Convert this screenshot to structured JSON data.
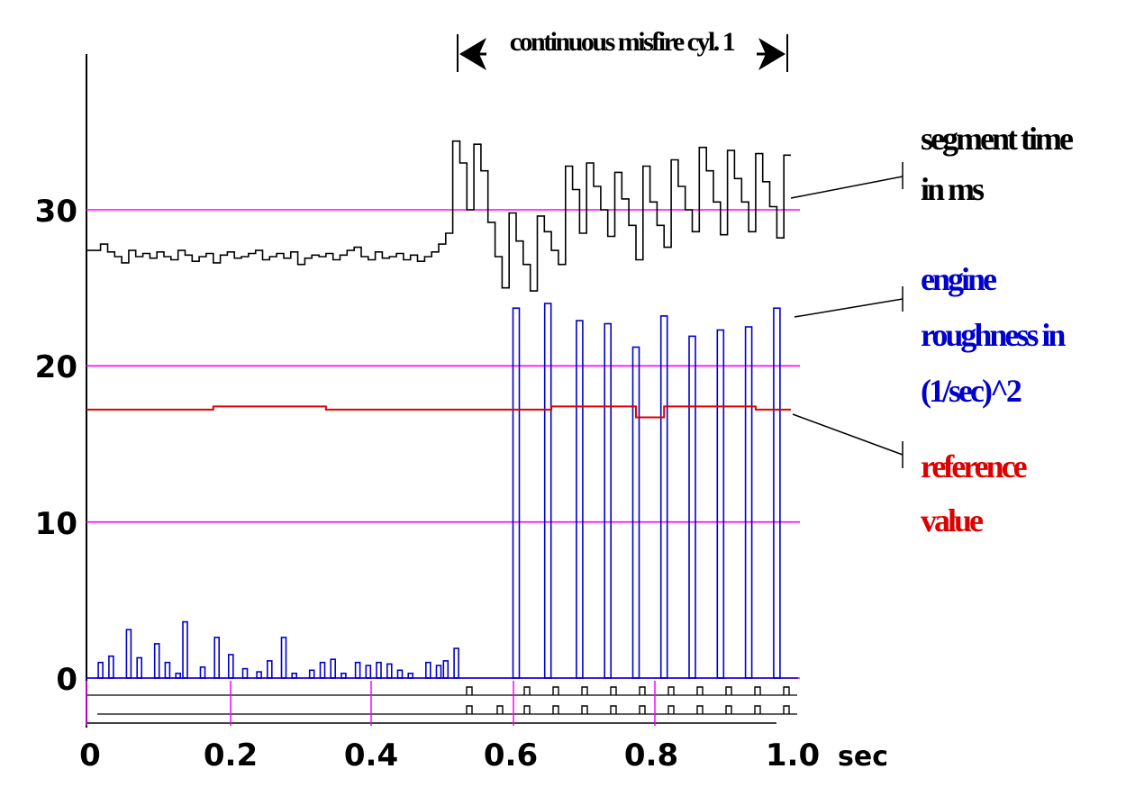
{
  "chart_data": {
    "type": "line",
    "title": "",
    "xlabel": "",
    "x_unit": "sec",
    "ylabel": "",
    "xlim": [
      0,
      1.0
    ],
    "ylim": [
      0,
      40
    ],
    "x_ticks": [
      "0",
      "0.2",
      "0.4",
      "0.6",
      "0.8",
      "1.0"
    ],
    "x_tick_values": [
      0,
      0.2,
      0.4,
      0.6,
      0.8,
      1.0
    ],
    "y_ticks": [
      "0",
      "10",
      "20",
      "30"
    ],
    "y_tick_values": [
      0,
      10,
      20,
      30
    ],
    "grid": {
      "horizontal_lines_at": [
        0,
        10,
        20,
        30
      ],
      "color": "#ff00ff"
    },
    "misfire_annotation": {
      "text": "continuous misfire cyl. 1",
      "x_start": 0.52,
      "x_end": 0.99
    },
    "labels": {
      "segment_time": [
        "segment time",
        "in ms"
      ],
      "engine_roughness": [
        "engine",
        "roughness in",
        "(1/sec)^2"
      ],
      "reference_value": [
        "reference",
        "value"
      ]
    },
    "colors": {
      "segment_time": "#000000",
      "engine_roughness": "#0000cc",
      "reference_value": "#dd0000",
      "grid": "#ff00ff"
    },
    "series": [
      {
        "name": "segment time in ms",
        "style": "step",
        "x": [
          0.0,
          0.02,
          0.03,
          0.04,
          0.05,
          0.06,
          0.07,
          0.08,
          0.09,
          0.1,
          0.11,
          0.12,
          0.13,
          0.14,
          0.15,
          0.16,
          0.17,
          0.18,
          0.19,
          0.2,
          0.21,
          0.22,
          0.23,
          0.24,
          0.25,
          0.26,
          0.27,
          0.28,
          0.29,
          0.3,
          0.31,
          0.32,
          0.33,
          0.34,
          0.35,
          0.36,
          0.37,
          0.38,
          0.39,
          0.4,
          0.41,
          0.42,
          0.43,
          0.44,
          0.45,
          0.46,
          0.47,
          0.48,
          0.49,
          0.5,
          0.51,
          0.52,
          0.53,
          0.54,
          0.55,
          0.56,
          0.57,
          0.58,
          0.59,
          0.6,
          0.61,
          0.62,
          0.63,
          0.64,
          0.65,
          0.66,
          0.67,
          0.68,
          0.69,
          0.7,
          0.71,
          0.72,
          0.73,
          0.74,
          0.75,
          0.76,
          0.77,
          0.78,
          0.79,
          0.8,
          0.81,
          0.82,
          0.83,
          0.84,
          0.85,
          0.86,
          0.87,
          0.88,
          0.89,
          0.9,
          0.91,
          0.92,
          0.93,
          0.94,
          0.95,
          0.96,
          0.97,
          0.98,
          0.99,
          1.0
        ],
        "y": [
          27.4,
          27.8,
          27.3,
          27.0,
          26.6,
          27.4,
          27.0,
          27.2,
          26.9,
          27.3,
          27.0,
          26.8,
          27.4,
          27.1,
          26.7,
          27.0,
          27.2,
          26.6,
          27.1,
          27.3,
          26.9,
          27.0,
          27.2,
          27.4,
          26.8,
          27.0,
          27.2,
          26.9,
          27.3,
          26.5,
          26.9,
          27.1,
          27.0,
          27.2,
          26.8,
          27.1,
          27.4,
          27.6,
          27.0,
          26.8,
          27.3,
          26.9,
          27.0,
          27.2,
          26.8,
          27.1,
          26.7,
          27.0,
          27.3,
          27.8,
          28.5,
          34.4,
          33.0,
          30.0,
          34.2,
          32.5,
          29.2,
          27.0,
          25.0,
          29.8,
          28.0,
          26.5,
          24.8,
          29.6,
          28.6,
          27.4,
          26.5,
          32.8,
          31.3,
          28.5,
          33.0,
          31.5,
          30.0,
          28.3,
          32.4,
          30.7,
          29.0,
          26.8,
          32.8,
          30.5,
          29.0,
          27.6,
          33.2,
          31.5,
          30.0,
          28.6,
          34.0,
          32.5,
          30.5,
          28.4,
          33.8,
          32.0,
          30.5,
          28.6,
          33.6,
          31.8,
          30.2,
          28.2,
          33.5,
          33.5
        ]
      },
      {
        "name": "engine roughness in (1/sec)^2",
        "style": "bars",
        "x": [
          0.02,
          0.035,
          0.06,
          0.075,
          0.1,
          0.115,
          0.13,
          0.14,
          0.165,
          0.185,
          0.205,
          0.225,
          0.245,
          0.26,
          0.28,
          0.295,
          0.32,
          0.335,
          0.35,
          0.365,
          0.385,
          0.4,
          0.415,
          0.43,
          0.445,
          0.46,
          0.485,
          0.5,
          0.51,
          0.525,
          0.61,
          0.655,
          0.7,
          0.74,
          0.78,
          0.82,
          0.86,
          0.9,
          0.94,
          0.98
        ],
        "y": [
          1.0,
          1.4,
          3.1,
          1.3,
          2.2,
          1.0,
          0.3,
          3.6,
          0.7,
          2.6,
          1.5,
          0.6,
          0.4,
          1.1,
          2.6,
          0.3,
          0.5,
          1.0,
          1.2,
          0.3,
          1.0,
          0.8,
          1.0,
          0.9,
          0.5,
          0.3,
          1.0,
          0.8,
          1.1,
          1.9,
          23.7,
          24.0,
          22.9,
          22.7,
          21.2,
          23.2,
          21.9,
          22.3,
          22.5,
          23.7
        ]
      },
      {
        "name": "reference value",
        "style": "step",
        "x": [
          0.0,
          0.18,
          0.34,
          0.66,
          0.78,
          0.82,
          0.95,
          1.0
        ],
        "y": [
          17.2,
          17.4,
          17.2,
          17.4,
          16.7,
          17.4,
          17.2,
          17.2
        ]
      }
    ]
  }
}
